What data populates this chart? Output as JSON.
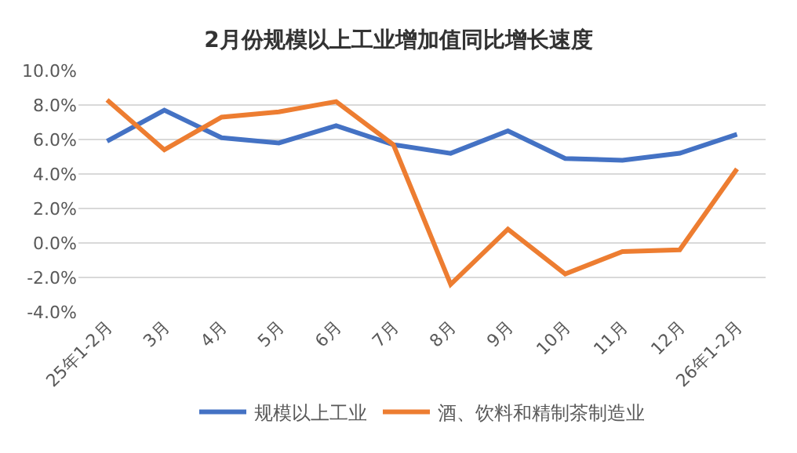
{
  "chart_data": {
    "type": "line",
    "title": "2月份规模以上工业增加值同比增长速度",
    "categories": [
      "25年1-2月",
      "3月",
      "4月",
      "5月",
      "6月",
      "7月",
      "8月",
      "9月",
      "10月",
      "11月",
      "12月",
      "26年1-2月"
    ],
    "series": [
      {
        "name": "规模以上工业",
        "color": "#4472c4",
        "values": [
          5.9,
          7.7,
          6.1,
          5.8,
          6.8,
          5.7,
          5.2,
          6.5,
          4.9,
          4.8,
          5.2,
          6.3
        ]
      },
      {
        "name": "酒、饮料和精制茶制造业",
        "color": "#ed7d31",
        "values": [
          8.3,
          5.4,
          7.3,
          7.6,
          8.2,
          5.7,
          -2.4,
          0.8,
          -1.8,
          -0.5,
          -0.4,
          4.3
        ]
      }
    ],
    "ylim": [
      -4,
      10
    ],
    "yticks": [
      {
        "value": -4,
        "label": "-4.0%"
      },
      {
        "value": -2,
        "label": "-2.0%"
      },
      {
        "value": 0,
        "label": "0.0%"
      },
      {
        "value": 2,
        "label": "2.0%"
      },
      {
        "value": 4,
        "label": "4.0%"
      },
      {
        "value": 6,
        "label": "6.0%"
      },
      {
        "value": 8,
        "label": "8.0%"
      },
      {
        "value": 10,
        "label": "10.0%"
      }
    ],
    "grid": "y",
    "legend": "bottom",
    "marker": "none",
    "line_style": "solid"
  }
}
